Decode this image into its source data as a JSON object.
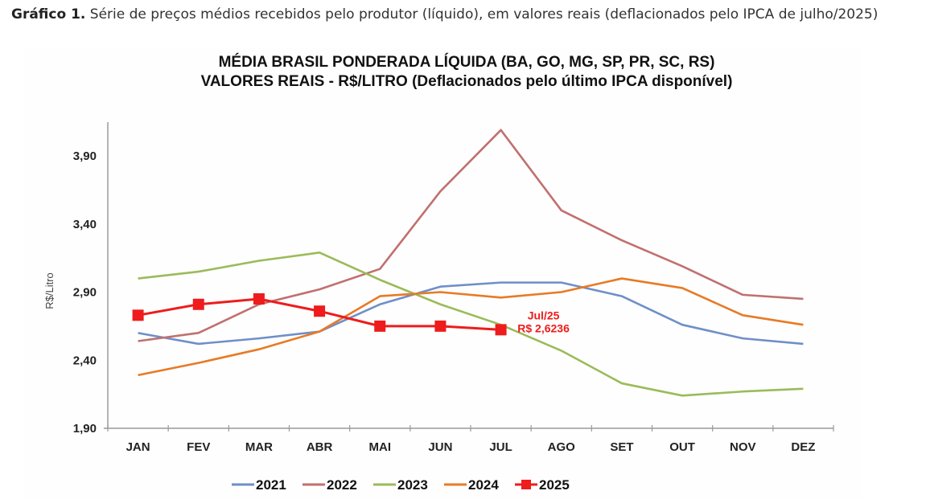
{
  "caption": {
    "label": "Gráfico 1.",
    "text": " Série de preços médios recebidos pelo produtor (líquido), em valores reais (deflacionados pelo IPCA de julho/2025)"
  },
  "chart_data": {
    "type": "line",
    "title": "MÉDIA BRASIL PONDERADA LÍQUIDA (BA, GO, MG, SP, PR, SC, RS)",
    "subtitle": "VALORES REAIS - R$/LITRO (Deflacionados pelo último IPCA disponível)",
    "xlabel": "",
    "ylabel": "R$/Litro",
    "categories": [
      "JAN",
      "FEV",
      "MAR",
      "ABR",
      "MAI",
      "JUN",
      "JUL",
      "AGO",
      "SET",
      "OUT",
      "NOV",
      "DEZ"
    ],
    "ylim": [
      1.9,
      4.1
    ],
    "yticks": [
      1.9,
      2.4,
      2.9,
      3.4,
      3.9
    ],
    "ytick_labels": [
      "1,90",
      "2,40",
      "2,90",
      "3,40",
      "3,90"
    ],
    "grid": false,
    "legend_position": "bottom",
    "series": [
      {
        "name": "2021",
        "color": "#6f8fc8",
        "marker": "none",
        "values": [
          2.6,
          2.52,
          2.56,
          2.61,
          2.81,
          2.94,
          2.97,
          2.97,
          2.87,
          2.66,
          2.56,
          2.52
        ]
      },
      {
        "name": "2022",
        "color": "#c0706f",
        "marker": "none",
        "values": [
          2.54,
          2.6,
          2.81,
          2.92,
          3.07,
          3.64,
          4.09,
          3.5,
          3.28,
          3.09,
          2.88,
          2.85
        ]
      },
      {
        "name": "2023",
        "color": "#9bbb59",
        "marker": "none",
        "values": [
          3.0,
          3.05,
          3.13,
          3.19,
          2.99,
          2.81,
          2.66,
          2.47,
          2.23,
          2.14,
          2.17,
          2.19
        ]
      },
      {
        "name": "2024",
        "color": "#e87a25",
        "marker": "none",
        "values": [
          2.29,
          2.38,
          2.48,
          2.61,
          2.87,
          2.9,
          2.86,
          2.9,
          3.0,
          2.93,
          2.73,
          2.66
        ]
      },
      {
        "name": "2025",
        "color": "#ee1c1c",
        "marker": "square",
        "values": [
          2.73,
          2.81,
          2.85,
          2.76,
          2.65,
          2.65,
          2.6236,
          null,
          null,
          null,
          null,
          null
        ]
      }
    ],
    "annotations": [
      {
        "series": "2025",
        "category": "JUL",
        "lines": [
          "Jul/25",
          "R$ 2,6236"
        ]
      }
    ]
  }
}
